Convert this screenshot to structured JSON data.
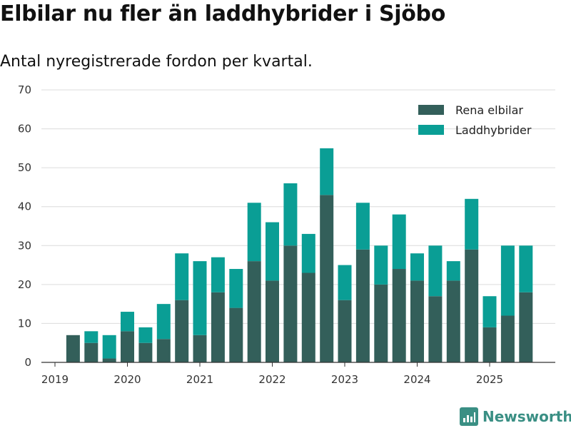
{
  "header": {
    "title": "Elbilar nu fler än laddhybrider i Sjöbo",
    "subtitle": "Antal nyregistrerade fordon per kvartal."
  },
  "brand": {
    "name": "Newsworthy",
    "icon": "newsworthy-logo-icon",
    "color": "#3a8f84"
  },
  "colors": {
    "bev": "#335f5a",
    "phev": "#0a9e95",
    "grid": "#dcdcdc",
    "axis": "#333333"
  },
  "chart_data": {
    "type": "bar",
    "stacked": true,
    "title": "Elbilar nu fler än laddhybrider i Sjöbo",
    "subtitle": "Antal nyregistrerade fordon per kvartal.",
    "xlabel": "",
    "ylabel": "",
    "ylim": [
      0,
      70
    ],
    "yticks": [
      0,
      10,
      20,
      30,
      40,
      50,
      60,
      70
    ],
    "grid": true,
    "legend_position": "top-right",
    "x_tick_labels": [
      "2019",
      "2020",
      "2021",
      "2022",
      "2023",
      "2024",
      "2025"
    ],
    "categories": [
      "2019 Q2",
      "2019 Q3",
      "2019 Q4",
      "2020 Q1",
      "2020 Q2",
      "2020 Q3",
      "2020 Q4",
      "2021 Q1",
      "2021 Q2",
      "2021 Q3",
      "2021 Q4",
      "2022 Q1",
      "2022 Q2",
      "2022 Q3",
      "2022 Q4",
      "2023 Q1",
      "2023 Q2",
      "2023 Q3",
      "2023 Q4",
      "2024 Q1",
      "2024 Q2",
      "2024 Q3",
      "2024 Q4",
      "2025 Q1",
      "2025 Q2",
      "2025 Q3"
    ],
    "series": [
      {
        "name": "Rena elbilar",
        "values": [
          7,
          5,
          1,
          8,
          5,
          6,
          16,
          7,
          18,
          14,
          26,
          21,
          30,
          23,
          43,
          16,
          29,
          20,
          24,
          21,
          17,
          21,
          29,
          9,
          12,
          18
        ]
      },
      {
        "name": "Laddhybrider",
        "values": [
          0,
          3,
          6,
          5,
          4,
          9,
          12,
          19,
          9,
          10,
          15,
          15,
          16,
          10,
          12,
          9,
          12,
          10,
          14,
          7,
          13,
          5,
          13,
          8,
          18,
          12
        ]
      }
    ]
  }
}
